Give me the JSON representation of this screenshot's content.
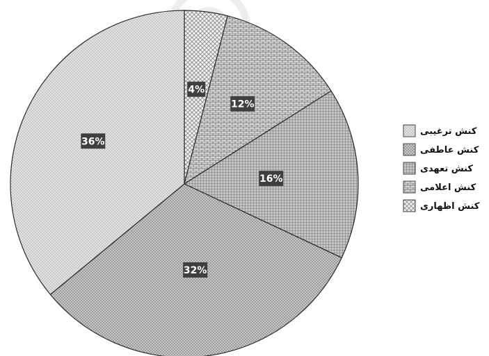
{
  "chart_data": {
    "type": "pie",
    "title": "",
    "start_angle_deg": 0,
    "direction": "clockwise",
    "slices": [
      {
        "label": "کنش اظهاری",
        "value": 4,
        "display": "4%",
        "pattern": "crosshatch"
      },
      {
        "label": "کنش اعلامی",
        "value": 12,
        "display": "12%",
        "pattern": "bricks"
      },
      {
        "label": "کنش تعهدی",
        "value": 16,
        "display": "16%",
        "pattern": "grid"
      },
      {
        "label": "کنش عاطفی",
        "value": 32,
        "display": "32%",
        "pattern": "dots-dense"
      },
      {
        "label": "کنش ترغیبی",
        "value": 36,
        "display": "36%",
        "pattern": "dots-light"
      }
    ],
    "legend": {
      "placement": "right",
      "order": [
        "کنش ترغیبی",
        "کنش عاطفی",
        "کنش تعهدی",
        "کنش اعلامی",
        "کنش اظهاری"
      ]
    }
  }
}
